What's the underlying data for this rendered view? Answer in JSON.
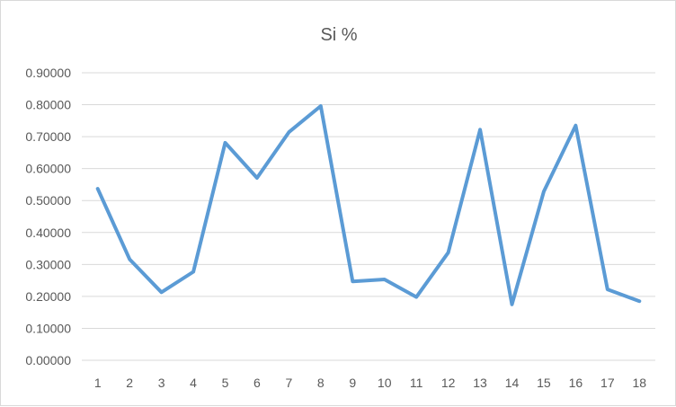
{
  "chart_data": {
    "type": "line",
    "title": "Si %",
    "xlabel": "",
    "ylabel": "",
    "categories": [
      "1",
      "2",
      "3",
      "4",
      "5",
      "6",
      "7",
      "8",
      "9",
      "10",
      "11",
      "12",
      "13",
      "14",
      "15",
      "16",
      "17",
      "18"
    ],
    "series": [
      {
        "values": [
          0.537,
          0.316,
          0.213,
          0.277,
          0.681,
          0.571,
          0.714,
          0.796,
          0.247,
          0.253,
          0.198,
          0.337,
          0.722,
          0.175,
          0.528,
          0.735,
          0.222,
          0.185
        ],
        "color": "#5b9bd5"
      }
    ],
    "ylim": [
      0,
      0.9
    ],
    "yticks": [
      "0.00000",
      "0.10000",
      "0.20000",
      "0.30000",
      "0.40000",
      "0.50000",
      "0.60000",
      "0.70000",
      "0.80000",
      "0.90000"
    ],
    "grid": true,
    "legend": "none"
  }
}
